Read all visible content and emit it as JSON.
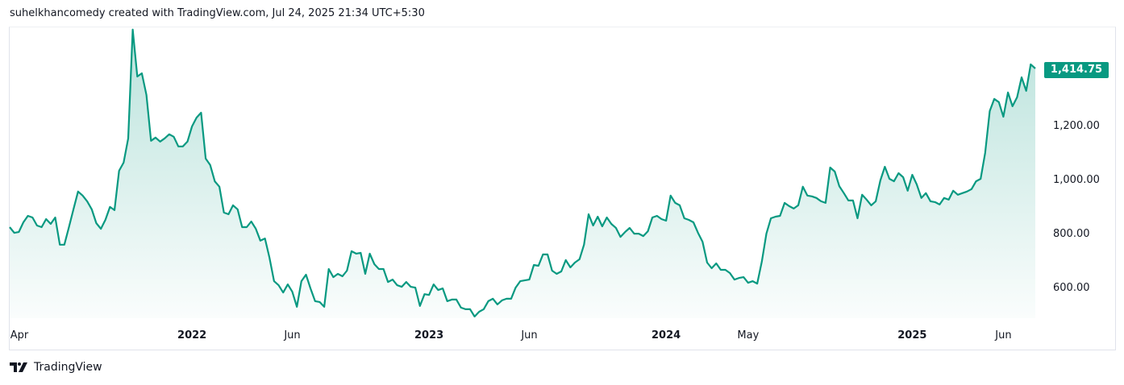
{
  "header": {
    "caption": "suhelkhancomedy created with TradingView.com, Jul 24, 2025 21:34 UTC+5:30"
  },
  "footer": {
    "logo_text": "TradingView"
  },
  "colors": {
    "line": "#089981",
    "fill": "#089981",
    "badge": "#089981"
  },
  "chart_data": {
    "type": "area",
    "title": "",
    "last_price_label": "1,414.75",
    "last_price": 1414.75,
    "ylim": [
      490,
      1567
    ],
    "y_ticks": [
      {
        "value": 1200,
        "label": "1,200.00"
      },
      {
        "value": 1000,
        "label": "1,000.00"
      },
      {
        "value": 800,
        "label": "800.00"
      },
      {
        "value": 600,
        "label": "600.00"
      }
    ],
    "x_ticks": [
      {
        "index": 2,
        "label": "Apr",
        "major": false
      },
      {
        "index": 40,
        "label": "2022",
        "major": true
      },
      {
        "index": 62,
        "label": "Jun",
        "major": false
      },
      {
        "index": 92,
        "label": "2023",
        "major": true
      },
      {
        "index": 114,
        "label": "Jun",
        "major": false
      },
      {
        "index": 144,
        "label": "2024",
        "major": true
      },
      {
        "index": 162,
        "label": "May",
        "major": false
      },
      {
        "index": 198,
        "label": "2025",
        "major": true
      },
      {
        "index": 218,
        "label": "Jun",
        "major": false
      }
    ],
    "values": [
      827,
      806,
      809,
      845,
      869,
      863,
      833,
      827,
      857,
      839,
      863,
      762,
      762,
      827,
      893,
      959,
      944,
      923,
      893,
      842,
      821,
      854,
      902,
      890,
      1036,
      1066,
      1156,
      1559,
      1385,
      1397,
      1317,
      1147,
      1159,
      1144,
      1156,
      1171,
      1162,
      1126,
      1126,
      1144,
      1200,
      1233,
      1251,
      1081,
      1057,
      997,
      977,
      881,
      875,
      908,
      893,
      827,
      827,
      848,
      821,
      777,
      785,
      714,
      627,
      612,
      585,
      615,
      588,
      532,
      627,
      651,
      600,
      553,
      550,
      532,
      672,
      642,
      654,
      645,
      666,
      738,
      729,
      732,
      654,
      729,
      690,
      672,
      672,
      624,
      633,
      612,
      606,
      624,
      606,
      603,
      535,
      579,
      576,
      615,
      594,
      600,
      553,
      559,
      559,
      529,
      523,
      523,
      496,
      514,
      523,
      553,
      562,
      541,
      556,
      562,
      562,
      603,
      627,
      630,
      633,
      687,
      684,
      726,
      726,
      666,
      654,
      663,
      705,
      678,
      696,
      708,
      762,
      875,
      833,
      866,
      830,
      863,
      839,
      824,
      791,
      809,
      824,
      803,
      803,
      794,
      812,
      863,
      869,
      857,
      851,
      944,
      917,
      908,
      860,
      854,
      845,
      806,
      773,
      696,
      675,
      693,
      669,
      669,
      657,
      633,
      639,
      642,
      621,
      627,
      618,
      699,
      803,
      860,
      866,
      869,
      917,
      905,
      896,
      908,
      977,
      944,
      941,
      935,
      923,
      917,
      1048,
      1033,
      979,
      953,
      926,
      926,
      860,
      947,
      929,
      908,
      923,
      1000,
      1051,
      1006,
      997,
      1027,
      1012,
      962,
      1021,
      985,
      935,
      953,
      923,
      920,
      911,
      935,
      929,
      962,
      947,
      953,
      959,
      968,
      997,
      1006,
      1102,
      1257,
      1302,
      1290,
      1236,
      1326,
      1275,
      1308,
      1382,
      1332,
      1430,
      1414.75
    ]
  }
}
